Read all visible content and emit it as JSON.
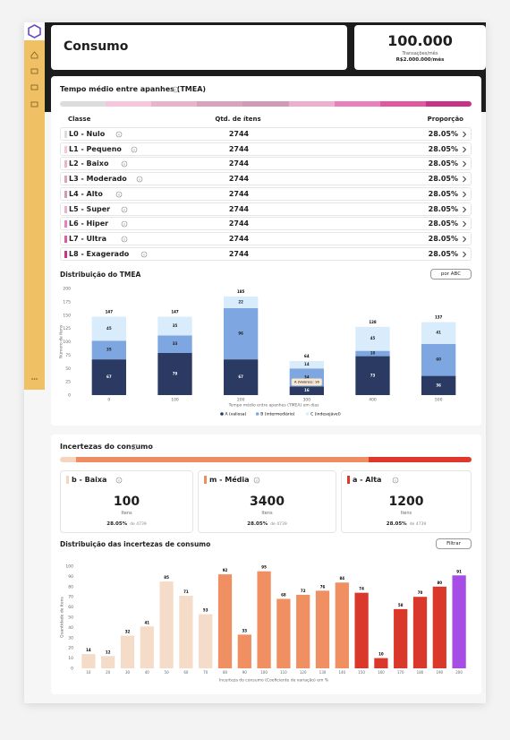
{
  "header": {
    "title": "Consumo",
    "kpi_value": "100.000",
    "kpi_label": "Transações/mês",
    "kpi_sub": "R$2.000.000/mês"
  },
  "tmea": {
    "title": "Tempo médio entre apanhes (TMEA)",
    "scale_colors": [
      "#dcdcdc",
      "#f6c6dc",
      "#e8b4cc",
      "#d7a3bd",
      "#cf9bb8",
      "#eeaed0",
      "#e980bd",
      "#e0589f",
      "#c8338a"
    ],
    "table": {
      "columns": [
        "Classe",
        "Qtd. de ítens",
        "Proporção"
      ],
      "rows": [
        [
          "L0 - Nulo",
          "2744",
          "28.05%"
        ],
        [
          "L1 - Pequeno",
          "2744",
          "28.05%"
        ],
        [
          "L2 - Baixo",
          "2744",
          "28.05%"
        ],
        [
          "L3 - Moderado",
          "2744",
          "28.05%"
        ],
        [
          "L4 - Alto",
          "2744",
          "28.05%"
        ],
        [
          "L5 - Super",
          "2744",
          "28.05%"
        ],
        [
          "L6 - Hiper",
          "2744",
          "28.05%"
        ],
        [
          "L7 - Ultra",
          "2744",
          "28.05%"
        ],
        [
          "L8 - Exagerado",
          "2744",
          "28.05%"
        ]
      ]
    }
  },
  "uncertainty": {
    "title": "Incertezas do consumo",
    "scale_colors": [
      "#f5d5c0",
      "#ef8d62",
      "#e0372c"
    ],
    "cards": [
      {
        "name": "b - Baixa",
        "color": "#f5d5c0",
        "value": "100",
        "unit": "Itens",
        "share": "28.05%",
        "share_of": "de 4739"
      },
      {
        "name": "m - Média",
        "color": "#ef8d62",
        "value": "3400",
        "unit": "Itens",
        "share": "28.05%",
        "share_of": "de 4739"
      },
      {
        "name": "a - Alta",
        "color": "#e0372c",
        "value": "1200",
        "unit": "Itens",
        "share": "28.05%",
        "share_of": "de 4739"
      }
    ]
  },
  "chart_data": [
    {
      "type": "stacked_bar",
      "title": "Distribuição do TMEA",
      "button": "por ABC",
      "y_label": "Número de itens",
      "x_label": "Tempo médio entre apanhes (TMEA) em dias",
      "categories": [
        "0",
        "100",
        "200",
        "300",
        "400",
        "500"
      ],
      "series": [
        {
          "name": "A (valiosa)",
          "color": "#2b3a63",
          "values": [
            67,
            79,
            67,
            16,
            73,
            36
          ]
        },
        {
          "name": "B (intermediário)",
          "color": "#7ea6e0",
          "values": [
            35,
            33,
            96,
            34,
            10,
            60
          ]
        },
        {
          "name": "C (indesejável)",
          "color": "#d9ecfb",
          "values": [
            45,
            35,
            22,
            14,
            45,
            41
          ]
        }
      ],
      "total_labels": [
        "147",
        "147",
        "185",
        "64",
        "128",
        "137"
      ],
      "tooltip": "A (Valores): 16",
      "ylim": [
        0,
        200
      ],
      "yticks": [
        0,
        25,
        50,
        75,
        100,
        125,
        150,
        175,
        200
      ],
      "grid": false
    },
    {
      "type": "bar",
      "title": "Distribuição das incertezas de consumo",
      "button": "Filtrar",
      "y_label": "Quantidade de itens",
      "x_label": "Incerteza do consumo (Coeficiente de variação) em %",
      "categories": [
        "10",
        "20",
        "30",
        "40",
        "50",
        "60",
        "70",
        "80",
        "90",
        "100",
        "110",
        "120",
        "130",
        "140",
        "150",
        "160",
        "170",
        "180",
        "190",
        "200"
      ],
      "values": [
        14,
        12,
        32,
        41,
        85,
        71,
        53,
        92,
        33,
        95,
        68,
        72,
        76,
        84,
        74,
        10,
        58,
        70,
        80,
        91
      ],
      "colors": [
        "#f5dcc8",
        "#f5dcc8",
        "#f5dcc8",
        "#f5dcc8",
        "#f5dcc8",
        "#f5dcc8",
        "#f5dcc8",
        "#ef8f62",
        "#ef8f62",
        "#ef8f62",
        "#ef8f62",
        "#ef8f62",
        "#ef8f62",
        "#ef8f62",
        "#d9382b",
        "#d9382b",
        "#d9382b",
        "#d9382b",
        "#d9382b",
        "#a64de6"
      ],
      "ylim": [
        0,
        100
      ],
      "yticks": [
        0,
        10,
        20,
        30,
        40,
        50,
        60,
        70,
        80,
        90,
        100
      ],
      "grid": false
    }
  ]
}
